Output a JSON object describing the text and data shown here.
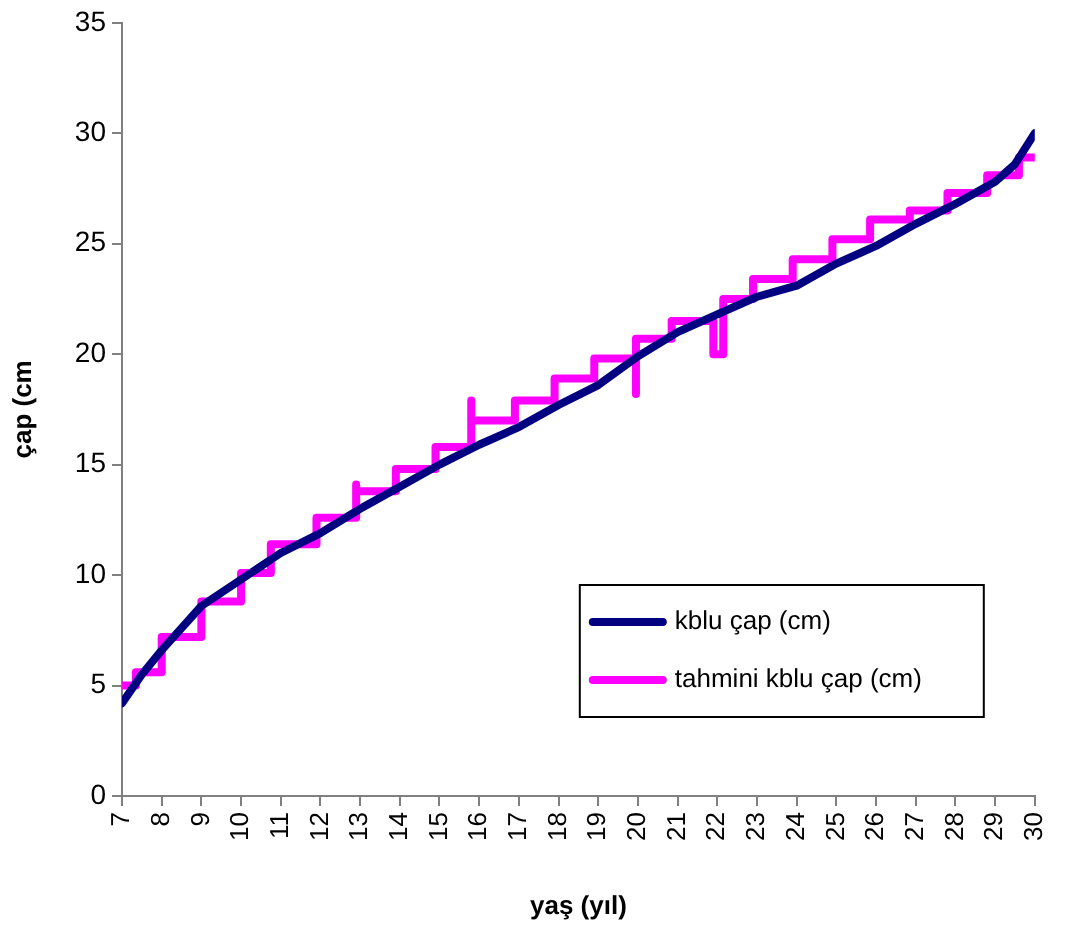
{
  "chart_data": {
    "type": "line",
    "xlabel": "yaş (yıl)",
    "ylabel": "çap (cm",
    "xlim": [
      7,
      30
    ],
    "xticks": [
      7,
      8,
      9,
      10,
      11,
      12,
      13,
      14,
      15,
      16,
      17,
      18,
      19,
      20,
      21,
      22,
      23,
      24,
      25,
      26,
      27,
      28,
      29,
      30
    ],
    "ylim": [
      0,
      35
    ],
    "yticks": [
      0,
      5,
      10,
      15,
      20,
      25,
      30,
      35
    ],
    "grid": false,
    "legend": "bottom right",
    "marker": "none",
    "line_style": "solid",
    "series": [
      {
        "name": "kblu çap (cm)",
        "color": "#000080",
        "x": [
          7,
          7.5,
          8,
          8.5,
          9,
          10,
          11,
          12,
          13,
          14,
          15,
          16,
          17,
          18,
          19,
          20,
          21,
          22,
          23,
          24,
          25,
          26,
          27,
          28,
          29,
          29.5,
          30
        ],
        "values": [
          4.2,
          5.5,
          6.6,
          7.6,
          8.6,
          9.8,
          11.0,
          11.9,
          13.0,
          14.0,
          15.0,
          15.9,
          16.7,
          17.7,
          18.6,
          19.9,
          21.0,
          21.8,
          22.6,
          23.1,
          24.1,
          24.9,
          25.9,
          26.8,
          27.8,
          28.6,
          30.0
        ]
      },
      {
        "name": "tahmini kblu çap (cm)",
        "color": "#ff00ff",
        "type": "step",
        "x": [
          7,
          7.35,
          8,
          9,
          10,
          10.75,
          11.9,
          12.9,
          12.9,
          13.9,
          14.9,
          15.8,
          15.8,
          16.9,
          17.9,
          18.9,
          19.95,
          19.95,
          20.85,
          21.9,
          22.15,
          22.9,
          23.9,
          24.9,
          25.85,
          26.85,
          27.8,
          28.8,
          29.6,
          30
        ],
        "values": [
          5.0,
          5.6,
          7.2,
          8.8,
          10.1,
          11.4,
          12.6,
          14.1,
          13.8,
          14.8,
          15.8,
          17.9,
          17.0,
          17.9,
          18.9,
          19.8,
          18.2,
          20.7,
          21.5,
          20.0,
          22.5,
          23.4,
          24.3,
          25.2,
          26.1,
          26.5,
          27.3,
          28.1,
          28.9,
          28.9
        ]
      }
    ]
  }
}
